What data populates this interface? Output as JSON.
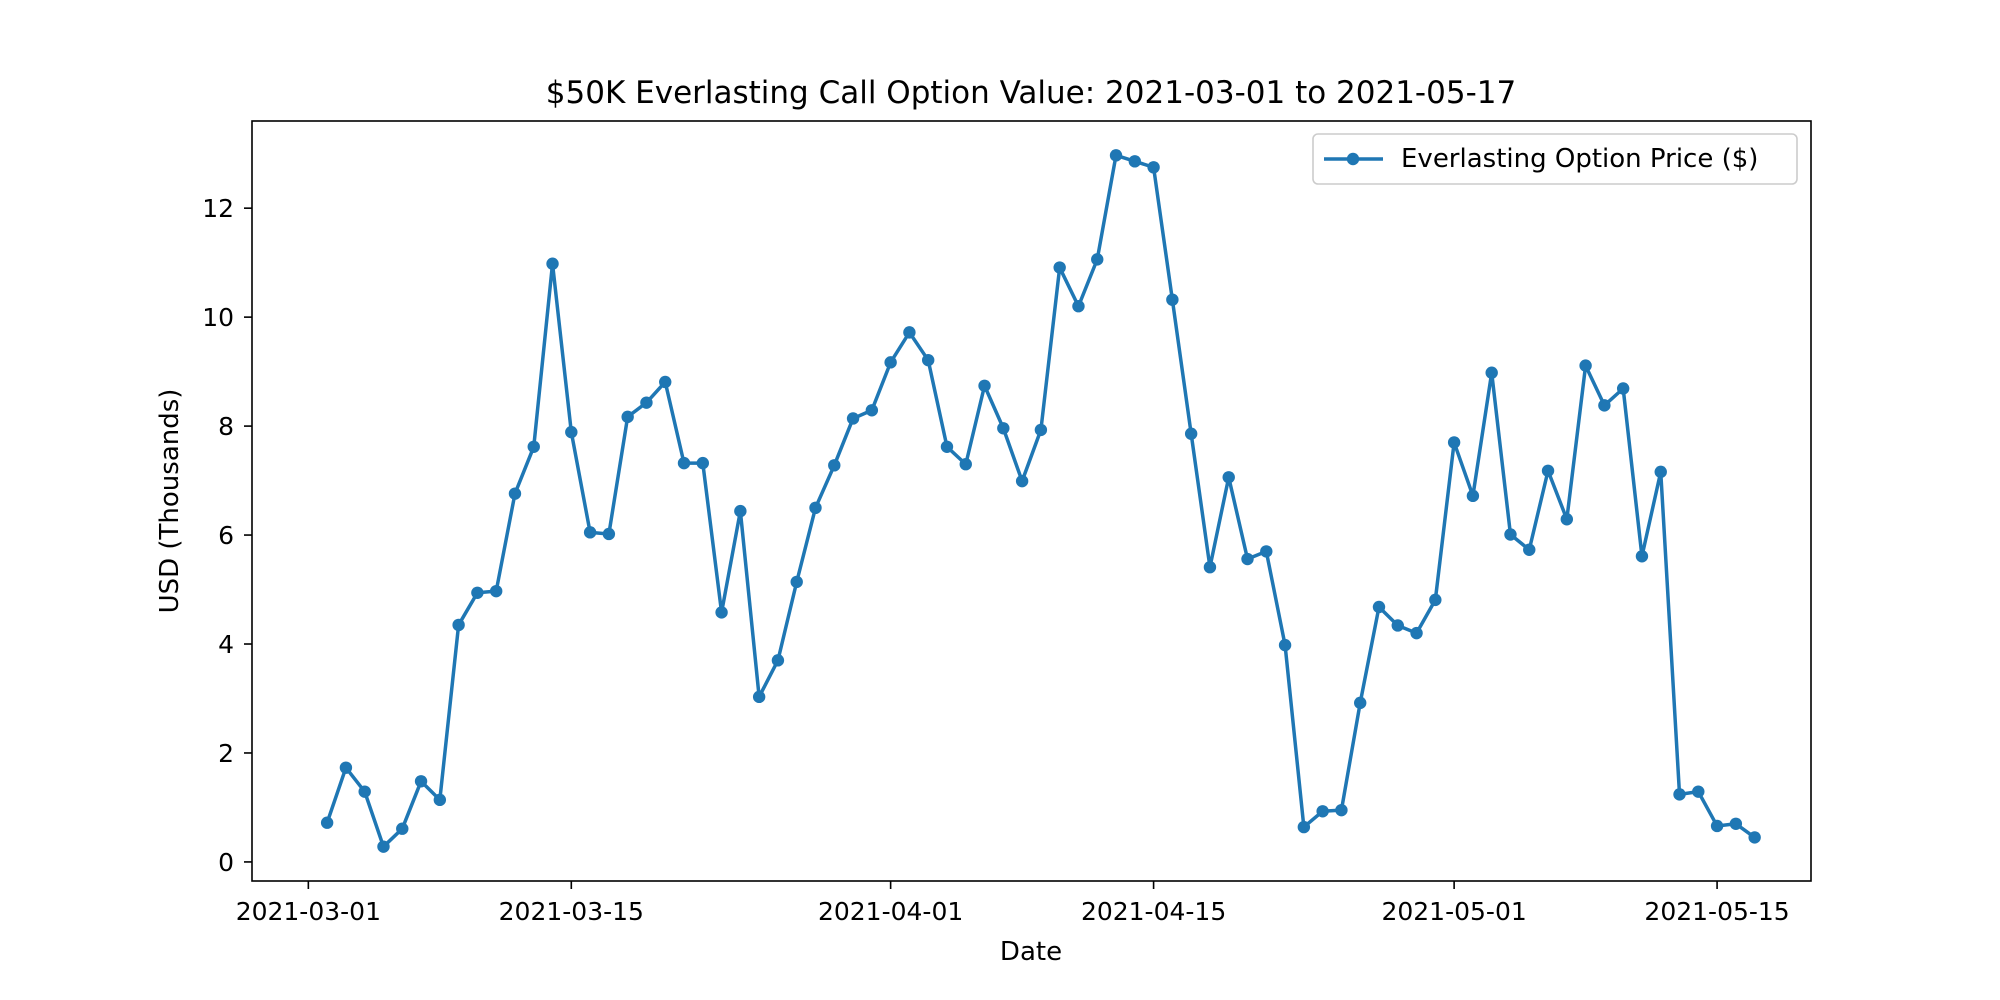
{
  "chart_data": {
    "type": "line",
    "title": "$50K Everlasting Call Option Value: 2021-03-01 to 2021-05-17",
    "xlabel": "Date",
    "ylabel": "USD (Thousands)",
    "xlim": [
      "2021-02-26",
      "2021-05-20"
    ],
    "ylim": [
      -0.35,
      13.6
    ],
    "grid": false,
    "legend_position": "upper right",
    "x_ticks": [
      "2021-03-01",
      "2021-03-15",
      "2021-04-01",
      "2021-04-15",
      "2021-05-01",
      "2021-05-15"
    ],
    "y_ticks": [
      0,
      2,
      4,
      6,
      8,
      10,
      12
    ],
    "series": [
      {
        "name": "Everlasting Option Price ($)",
        "color": "#1f77b4",
        "marker": "circle",
        "x": [
          "2021-03-02",
          "2021-03-03",
          "2021-03-04",
          "2021-03-05",
          "2021-03-06",
          "2021-03-07",
          "2021-03-08",
          "2021-03-09",
          "2021-03-10",
          "2021-03-11",
          "2021-03-12",
          "2021-03-13",
          "2021-03-14",
          "2021-03-15",
          "2021-03-16",
          "2021-03-17",
          "2021-03-18",
          "2021-03-19",
          "2021-03-20",
          "2021-03-21",
          "2021-03-22",
          "2021-03-23",
          "2021-03-24",
          "2021-03-25",
          "2021-03-26",
          "2021-03-27",
          "2021-03-28",
          "2021-03-29",
          "2021-03-30",
          "2021-03-31",
          "2021-04-01",
          "2021-04-02",
          "2021-04-03",
          "2021-04-04",
          "2021-04-05",
          "2021-04-06",
          "2021-04-07",
          "2021-04-08",
          "2021-04-09",
          "2021-04-10",
          "2021-04-11",
          "2021-04-12",
          "2021-04-13",
          "2021-04-14",
          "2021-04-15",
          "2021-04-16",
          "2021-04-17",
          "2021-04-18",
          "2021-04-19",
          "2021-04-20",
          "2021-04-21",
          "2021-04-22",
          "2021-04-23",
          "2021-04-24",
          "2021-04-25",
          "2021-04-26",
          "2021-04-27",
          "2021-04-28",
          "2021-04-29",
          "2021-04-30",
          "2021-05-01",
          "2021-05-02",
          "2021-05-03",
          "2021-05-04",
          "2021-05-05",
          "2021-05-06",
          "2021-05-07",
          "2021-05-08",
          "2021-05-09",
          "2021-05-10",
          "2021-05-11",
          "2021-05-12",
          "2021-05-13",
          "2021-05-14",
          "2021-05-15",
          "2021-05-16",
          "2021-05-17"
        ],
        "y": [
          0.72,
          1.73,
          1.29,
          0.28,
          0.61,
          1.48,
          1.14,
          4.35,
          4.94,
          4.97,
          6.76,
          7.62,
          10.98,
          7.89,
          6.05,
          6.02,
          8.17,
          8.43,
          8.81,
          7.32,
          7.32,
          4.58,
          6.44,
          3.03,
          3.7,
          5.14,
          6.5,
          7.28,
          8.14,
          8.29,
          9.17,
          9.72,
          9.21,
          7.62,
          7.3,
          8.74,
          7.96,
          6.99,
          7.93,
          10.91,
          10.2,
          11.06,
          12.97,
          12.86,
          12.75,
          10.32,
          7.86,
          5.41,
          7.06,
          5.56,
          5.7,
          3.98,
          0.64,
          0.93,
          0.95,
          2.92,
          4.68,
          4.34,
          4.2,
          4.81,
          7.7,
          6.72,
          8.98,
          6.01,
          5.73,
          7.18,
          6.29,
          9.11,
          8.38,
          8.69,
          5.61,
          7.16,
          1.24,
          1.29,
          0.66,
          0.7,
          0.45
        ]
      }
    ]
  }
}
